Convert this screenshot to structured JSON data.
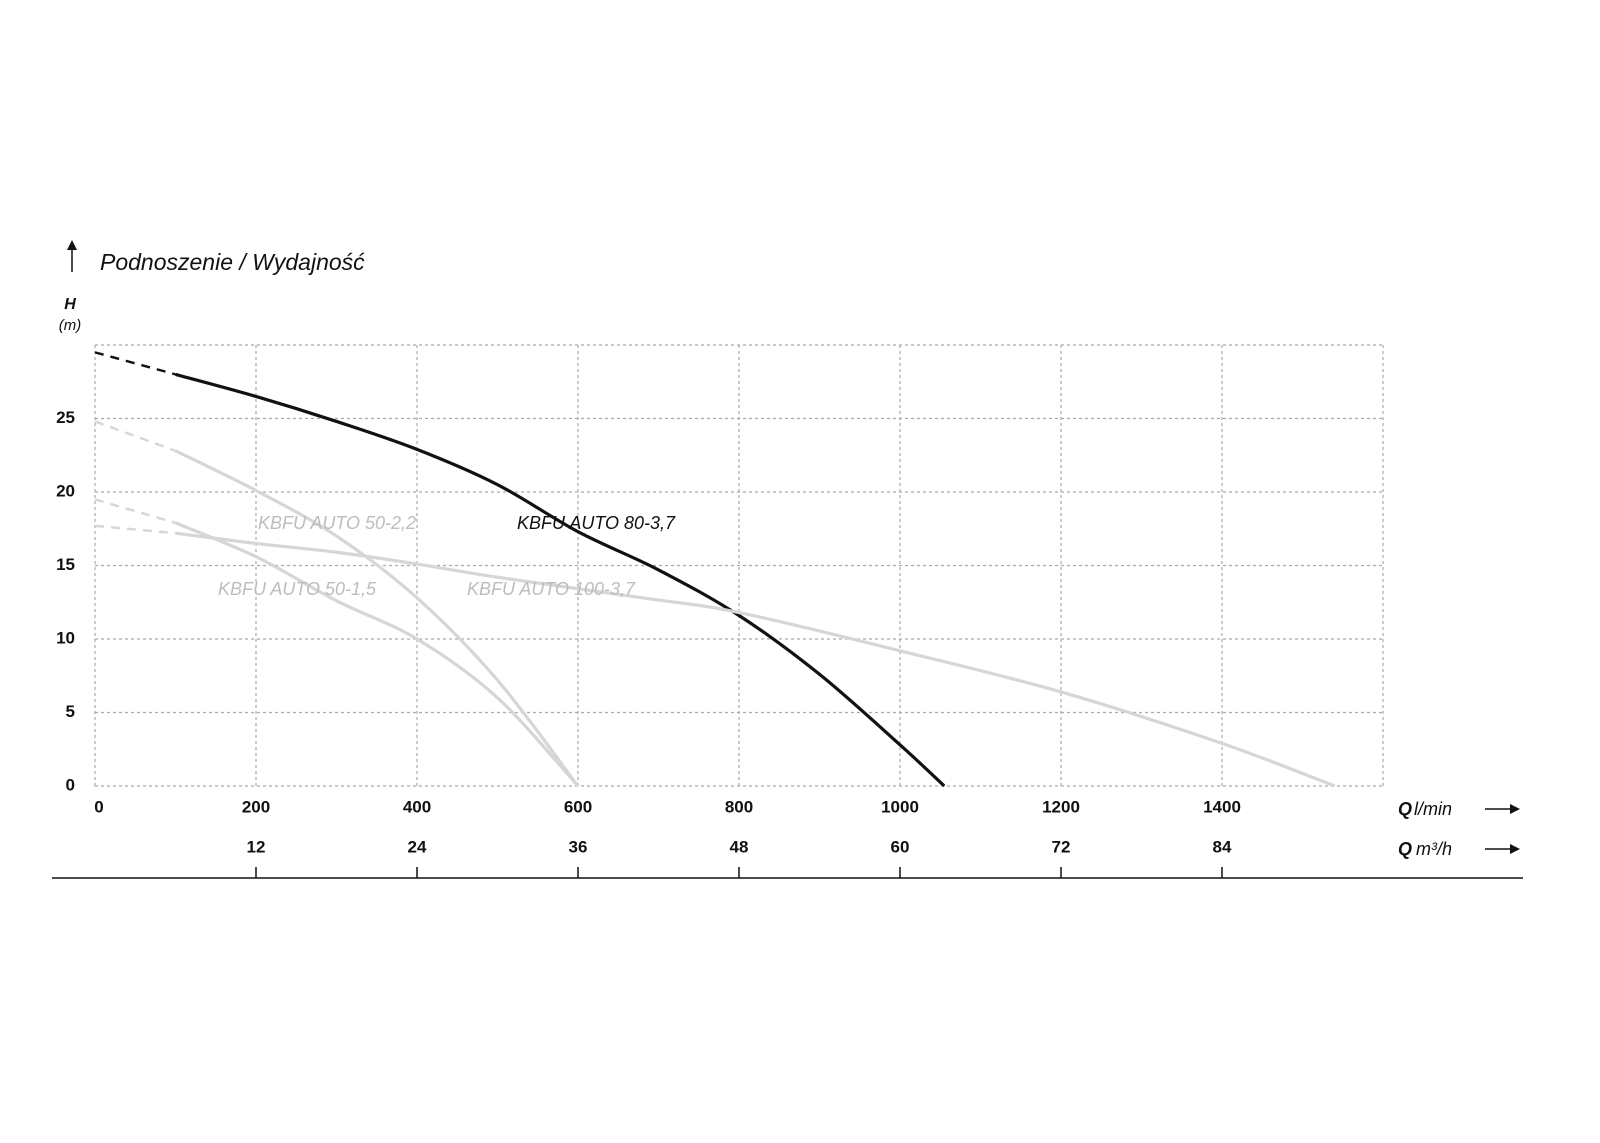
{
  "chart_data": {
    "type": "line",
    "title": "Podnoszenie / Wydajność",
    "ylabel_symbol": "H",
    "ylabel_unit": "(m)",
    "xlabel_symbol": "Q",
    "xlabel_unit": "l/min",
    "x2label_unit": "m³/h",
    "xlim": [
      0,
      1600
    ],
    "xticks": [
      0,
      200,
      400,
      600,
      800,
      1000,
      1200,
      1400
    ],
    "x2lim": [
      0,
      96
    ],
    "x2ticks": [
      12,
      24,
      36,
      48,
      60,
      72,
      84
    ],
    "ylim": [
      0,
      30
    ],
    "yticks": [
      0,
      5,
      10,
      15,
      20,
      25
    ],
    "grid": true,
    "dashed_below_x": 100,
    "series": [
      {
        "name": "KBFU AUTO 80-3,7",
        "color": "#111111",
        "label_color": "#111111",
        "x": [
          0,
          100,
          200,
          300,
          400,
          500,
          600,
          700,
          800,
          900,
          1000,
          1055
        ],
        "values": [
          29.5,
          28.0,
          26.5,
          24.8,
          22.9,
          20.5,
          17.3,
          14.7,
          11.6,
          7.6,
          2.8,
          0
        ]
      },
      {
        "name": "KBFU AUTO 50-2,2",
        "color": "#d6d6d6",
        "label_color": "#bdbdbd",
        "x": [
          0,
          100,
          200,
          300,
          400,
          500,
          600
        ],
        "values": [
          24.8,
          22.8,
          20.1,
          17.0,
          12.8,
          7.2,
          0
        ]
      },
      {
        "name": "KBFU AUTO 50-1,5",
        "color": "#d6d6d6",
        "label_color": "#bdbdbd",
        "x": [
          0,
          100,
          200,
          300,
          400,
          500,
          600
        ],
        "values": [
          19.5,
          17.9,
          15.6,
          12.6,
          10.0,
          6.0,
          0
        ]
      },
      {
        "name": "KBFU AUTO 100-3,7",
        "color": "#d6d6d6",
        "label_color": "#bdbdbd",
        "x": [
          0,
          100,
          200,
          300,
          400,
          500,
          680,
          800,
          1000,
          1200,
          1400,
          1540
        ],
        "values": [
          17.7,
          17.2,
          16.5,
          15.9,
          15.1,
          14.2,
          12.8,
          11.8,
          9.2,
          6.4,
          2.9,
          0
        ]
      }
    ]
  }
}
